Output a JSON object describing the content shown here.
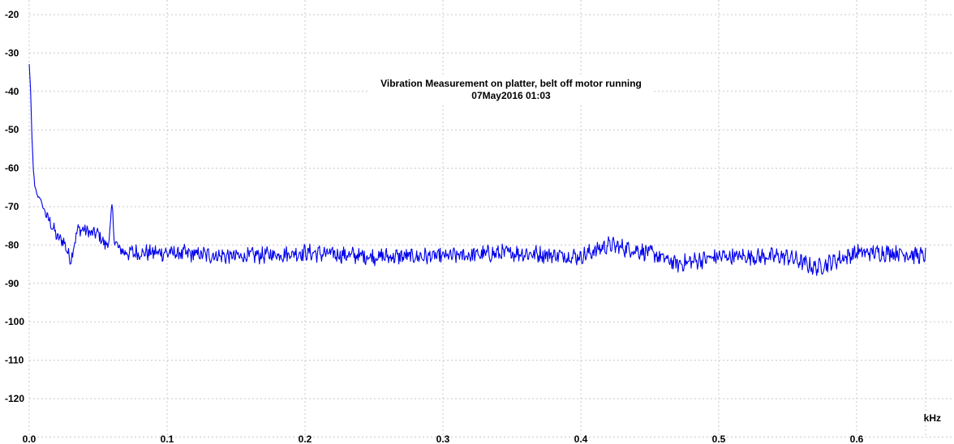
{
  "chart_data": {
    "type": "line",
    "title": "Vibration Measurement on platter, belt off motor running",
    "subtitle": "07May2016  01:03",
    "xlabel": "kHz",
    "ylabel": "",
    "xlim": [
      0.0,
      0.65
    ],
    "ylim": [
      -130,
      -20
    ],
    "x_ticks": [
      "0.0",
      "0.1",
      "0.2",
      "0.3",
      "0.4",
      "0.5",
      "0.6"
    ],
    "y_ticks": [
      "-20",
      "-30",
      "-40",
      "-50",
      "-60",
      "-70",
      "-80",
      "-90",
      "-100",
      "-110",
      "-120"
    ],
    "grid": true,
    "series_color": "#0000ee",
    "series": [
      {
        "x": [
          0.0,
          0.001,
          0.002,
          0.003,
          0.004,
          0.006,
          0.008,
          0.01,
          0.012,
          0.015,
          0.018,
          0.02,
          0.025,
          0.03,
          0.035,
          0.04,
          0.045,
          0.05,
          0.055,
          0.058,
          0.06,
          0.062,
          0.065,
          0.07,
          0.08,
          0.1,
          0.15,
          0.2,
          0.25,
          0.3,
          0.35,
          0.4,
          0.42,
          0.45,
          0.47,
          0.5,
          0.55,
          0.57,
          0.6,
          0.63,
          0.65
        ],
        "values": [
          -33,
          -40,
          -52,
          -60,
          -65,
          -67,
          -68,
          -70,
          -72,
          -74,
          -76,
          -78,
          -79,
          -84,
          -76,
          -76,
          -77,
          -77,
          -80,
          -79,
          -70,
          -79,
          -81,
          -82,
          -82,
          -82,
          -83,
          -82,
          -83,
          -83,
          -82,
          -83,
          -80,
          -82,
          -85,
          -83,
          -83,
          -86,
          -82,
          -82,
          -83
        ]
      }
    ]
  }
}
